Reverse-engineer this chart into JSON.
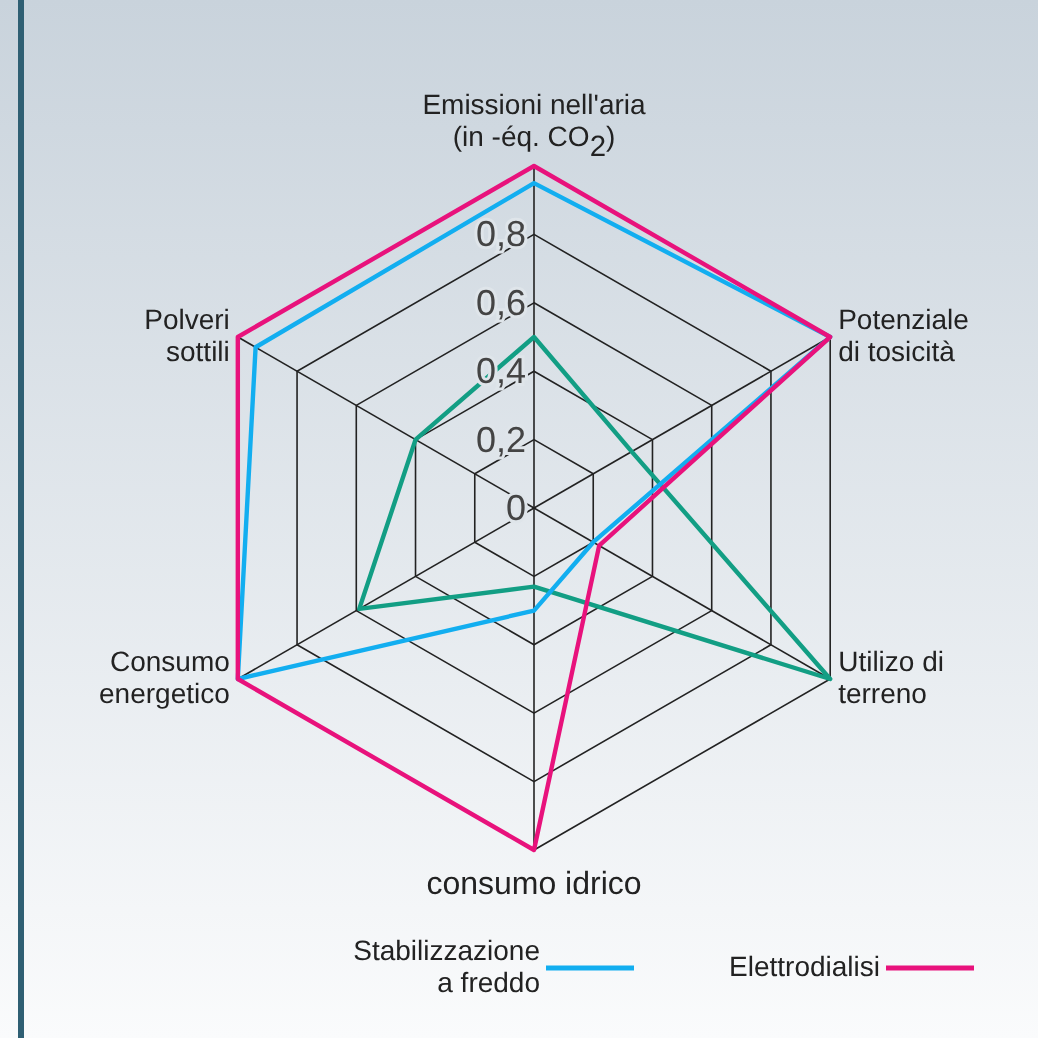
{
  "chart_data": {
    "type": "radar",
    "categories": [
      "Emissioni nell'aria\n(in -éq. CO$_{2}$)",
      "Potenziale\ndi tosicità",
      "Utilizo di\nterreno",
      "consumo idrico",
      "Consumo\nenergetico",
      "Polveri\nsottili"
    ],
    "ylim": [
      0,
      1
    ],
    "yticks": [
      {
        "value": 0,
        "label": "0"
      },
      {
        "value": 0.2,
        "label": "0,2"
      },
      {
        "value": 0.4,
        "label": "0,4"
      },
      {
        "value": 0.6,
        "label": "0,6"
      },
      {
        "value": 0.8,
        "label": "0,8"
      }
    ],
    "legend": "bottom",
    "series": [
      {
        "color": "#129e84",
        "values": [
          0.5,
          0.33,
          1,
          0.23,
          0.59,
          0.4
        ]
      },
      {
        "name": "Stabilizzazione\na freddo",
        "color": "#12aef0",
        "values": [
          0.95,
          1,
          0.2,
          0.3,
          1,
          0.94
        ]
      },
      {
        "name": "Elettrodialisi",
        "color": "#e8127c",
        "values": [
          1,
          1,
          0.22,
          1,
          1,
          1
        ]
      }
    ]
  }
}
